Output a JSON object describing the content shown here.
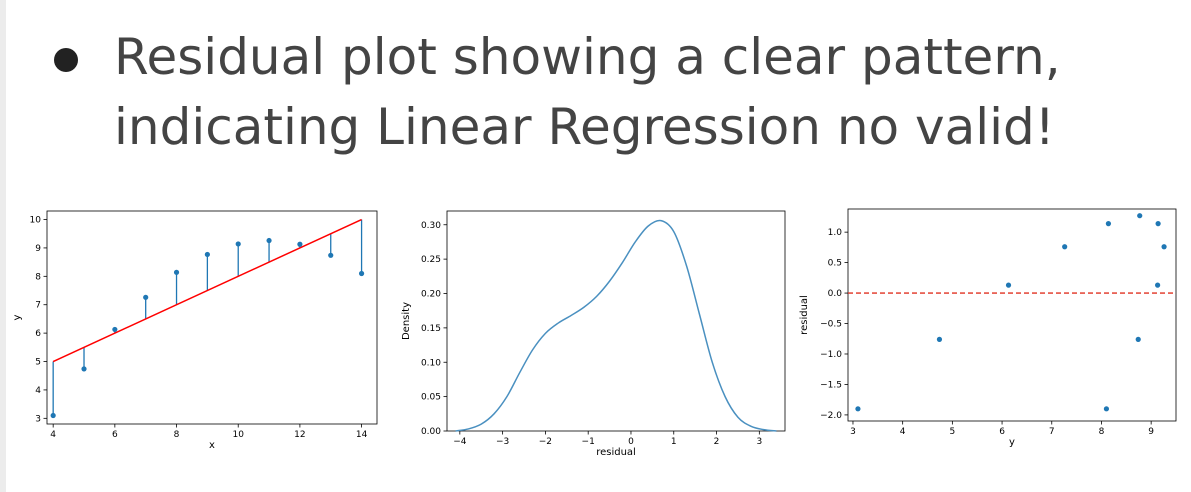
{
  "slide": {
    "title_line1": "Residual plot showing a clear pattern,",
    "title_line2": "indicating Linear Regression no valid!",
    "bullet_icon": "bullet-dot-icon"
  },
  "colors": {
    "point": "#1f77b4",
    "fit_line": "#ff0000",
    "kde_line": "#4a90c0",
    "zero_line": "#e03020",
    "title": "#444444"
  },
  "chart_data": [
    {
      "type": "scatter",
      "subtype": "regression-with-residual-segments",
      "xlabel": "x",
      "ylabel": "y",
      "xlim": [
        3.8,
        14.5
      ],
      "ylim": [
        2.8,
        10.3
      ],
      "xticks": [
        4,
        6,
        8,
        10,
        12,
        14
      ],
      "yticks": [
        3,
        4,
        5,
        6,
        7,
        8,
        9,
        10
      ],
      "x": [
        4,
        5,
        6,
        7,
        8,
        9,
        10,
        11,
        12,
        13,
        14
      ],
      "y": [
        3.1,
        4.74,
        6.13,
        7.26,
        8.14,
        8.77,
        9.14,
        9.26,
        9.13,
        8.74,
        8.1
      ],
      "fit_line": {
        "x": [
          4,
          14
        ],
        "y": [
          5.0,
          10.0
        ]
      },
      "grid": false
    },
    {
      "type": "line",
      "subtype": "kde-density",
      "xlabel": "residual",
      "ylabel": "Density",
      "xlim": [
        -4.3,
        3.6
      ],
      "ylim": [
        0,
        0.32
      ],
      "xticks": [
        -4,
        -3,
        -2,
        -1,
        0,
        1,
        2,
        3
      ],
      "xtick_labels": [
        "−4",
        "−3",
        "−2",
        "−1",
        "0",
        "1",
        "2",
        "3"
      ],
      "yticks": [
        0.0,
        0.05,
        0.1,
        0.15,
        0.2,
        0.25,
        0.3
      ],
      "ytick_labels": [
        "0.00",
        "0.05",
        "0.10",
        "0.15",
        "0.20",
        "0.25",
        "0.30"
      ],
      "x": [
        -4.1,
        -3.8,
        -3.5,
        -3.2,
        -2.9,
        -2.6,
        -2.3,
        -2.0,
        -1.7,
        -1.4,
        -1.1,
        -0.8,
        -0.5,
        -0.2,
        0.1,
        0.4,
        0.7,
        1.0,
        1.3,
        1.6,
        1.9,
        2.2,
        2.5,
        2.8,
        3.1,
        3.4
      ],
      "y": [
        0.0,
        0.003,
        0.01,
        0.025,
        0.05,
        0.085,
        0.118,
        0.142,
        0.157,
        0.168,
        0.18,
        0.196,
        0.218,
        0.245,
        0.275,
        0.298,
        0.306,
        0.29,
        0.24,
        0.17,
        0.1,
        0.05,
        0.02,
        0.007,
        0.002,
        0.0
      ],
      "grid": false
    },
    {
      "type": "scatter",
      "subtype": "residual-vs-fitted",
      "xlabel": "y",
      "ylabel": "residual",
      "xlim": [
        2.9,
        9.5
      ],
      "ylim": [
        -2.1,
        1.38
      ],
      "xticks": [
        3,
        4,
        5,
        6,
        7,
        8,
        9
      ],
      "yticks": [
        1.0,
        0.5,
        0.0,
        -0.5,
        -1.0,
        -1.5,
        -2.0
      ],
      "ytick_labels": [
        "1.0",
        "0.5",
        "0.0",
        "−0.5",
        "−1.0",
        "−1.5",
        "−2.0"
      ],
      "x": [
        3.1,
        4.74,
        6.13,
        7.26,
        8.14,
        8.77,
        9.14,
        9.26,
        9.13,
        8.74,
        8.1
      ],
      "y": [
        -1.9,
        -0.76,
        0.13,
        0.76,
        1.14,
        1.27,
        1.14,
        0.76,
        0.13,
        -0.76,
        -1.9
      ],
      "reference_line": {
        "y": 0,
        "style": "dashed"
      },
      "grid": false
    }
  ]
}
